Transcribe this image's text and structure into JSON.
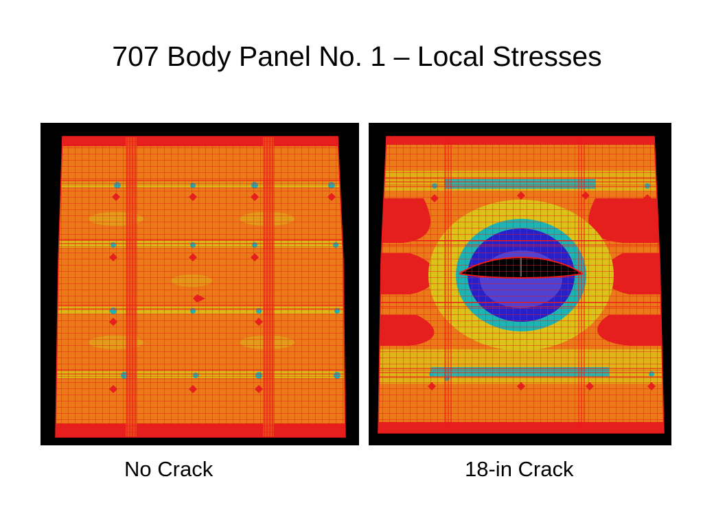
{
  "slide": {
    "title": "707 Body Panel No. 1 – Local Stresses"
  },
  "panels": [
    {
      "caption": "No Crack"
    },
    {
      "caption": "18-in Crack"
    }
  ],
  "colors": {
    "background": "#000000",
    "mesh_line": "#ee1a1a",
    "base_stress": "#ec7a1a",
    "high_stress": "#e51e1e",
    "mid_stress": "#dcc21a",
    "low_stress": "#1fb4b4",
    "lowest_stress": "#2620c8"
  }
}
